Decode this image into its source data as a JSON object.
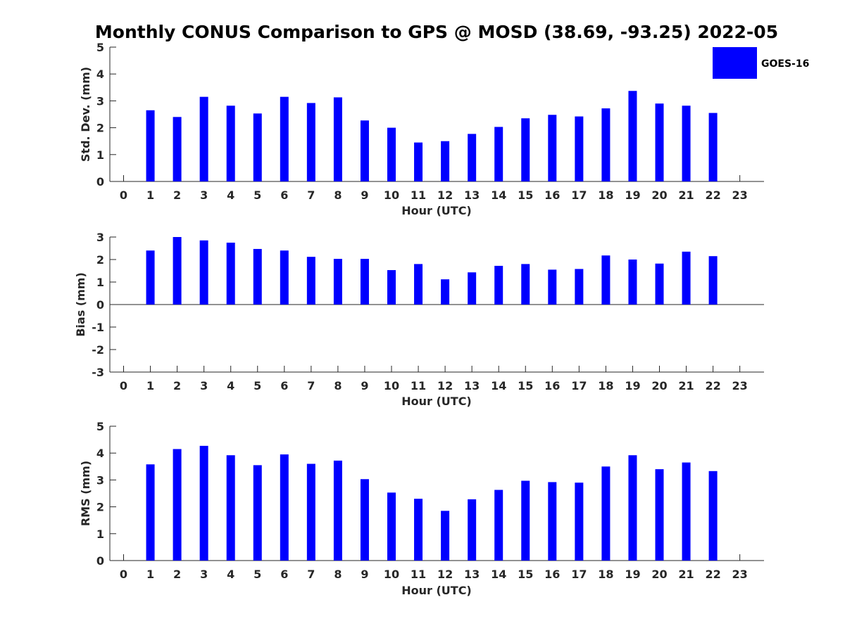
{
  "title": "Monthly CONUS Comparison to GPS @ MOSD (38.69, -93.25) 2022-05",
  "colors": {
    "bar": "#0000ff",
    "axis": "#262626"
  },
  "chart_data": [
    {
      "type": "bar",
      "name": "stddev",
      "title": "Monthly CONUS Comparison to GPS @ MOSD (38.69, -93.25) 2022-05",
      "xlabel": "Hour (UTC)",
      "ylabel": "Std. Dev. (mm)",
      "ylim": [
        0,
        5
      ],
      "yticks": [
        "0",
        "1",
        "2",
        "3",
        "4",
        "5"
      ],
      "categories": [
        "0",
        "1",
        "2",
        "3",
        "4",
        "5",
        "6",
        "7",
        "8",
        "9",
        "10",
        "11",
        "12",
        "13",
        "14",
        "15",
        "16",
        "17",
        "18",
        "19",
        "20",
        "21",
        "22",
        "23"
      ],
      "legend": {
        "label": "GOES-16",
        "position": "top-right"
      },
      "series": [
        {
          "name": "GOES-16",
          "values": [
            null,
            2.65,
            2.4,
            3.15,
            2.82,
            2.53,
            3.15,
            2.92,
            3.13,
            2.27,
            2.0,
            1.45,
            1.5,
            1.77,
            2.03,
            2.35,
            2.48,
            2.42,
            2.72,
            3.37,
            2.9,
            2.82,
            2.55,
            null
          ]
        }
      ]
    },
    {
      "type": "bar",
      "name": "bias",
      "xlabel": "Hour (UTC)",
      "ylabel": "Bias (mm)",
      "ylim": [
        -3,
        3
      ],
      "yticks": [
        "-3",
        "-2",
        "-1",
        "0",
        "1",
        "2",
        "3"
      ],
      "categories": [
        "0",
        "1",
        "2",
        "3",
        "4",
        "5",
        "6",
        "7",
        "8",
        "9",
        "10",
        "11",
        "12",
        "13",
        "14",
        "15",
        "16",
        "17",
        "18",
        "19",
        "20",
        "21",
        "22",
        "23"
      ],
      "series": [
        {
          "name": "GOES-16",
          "values": [
            null,
            2.4,
            3.0,
            2.85,
            2.75,
            2.47,
            2.4,
            2.12,
            2.03,
            2.03,
            1.53,
            1.8,
            1.12,
            1.43,
            1.72,
            1.8,
            1.55,
            1.58,
            2.18,
            2.0,
            1.82,
            2.35,
            2.15,
            null
          ]
        }
      ]
    },
    {
      "type": "bar",
      "name": "rms",
      "xlabel": "Hour (UTC)",
      "ylabel": "RMS (mm)",
      "ylim": [
        0,
        5
      ],
      "yticks": [
        "0",
        "1",
        "2",
        "3",
        "4",
        "5"
      ],
      "categories": [
        "0",
        "1",
        "2",
        "3",
        "4",
        "5",
        "6",
        "7",
        "8",
        "9",
        "10",
        "11",
        "12",
        "13",
        "14",
        "15",
        "16",
        "17",
        "18",
        "19",
        "20",
        "21",
        "22",
        "23"
      ],
      "series": [
        {
          "name": "GOES-16",
          "values": [
            null,
            3.58,
            4.15,
            4.27,
            3.92,
            3.55,
            3.95,
            3.6,
            3.72,
            3.03,
            2.53,
            2.3,
            1.85,
            2.28,
            2.63,
            2.97,
            2.92,
            2.9,
            3.5,
            3.92,
            3.4,
            3.65,
            3.33,
            null
          ]
        }
      ]
    }
  ]
}
